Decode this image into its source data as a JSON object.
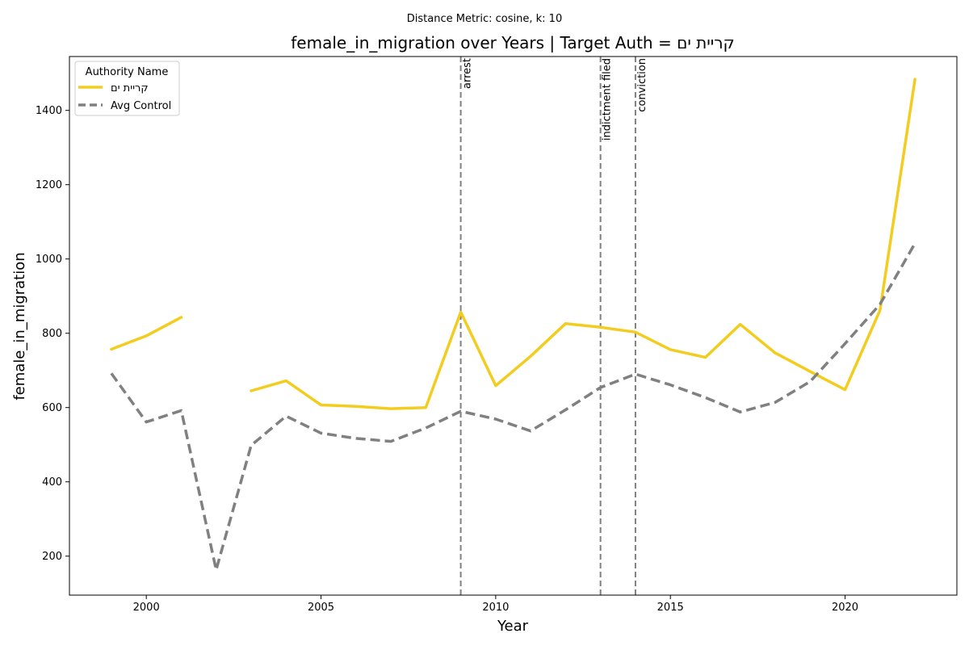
{
  "figure": {
    "suptitle": "Distance Metric: cosine, k: 10"
  },
  "chart_data": {
    "type": "line",
    "title": "female_in_migration over Years | Target Auth = קריית ים",
    "xlabel": "Year",
    "ylabel": "female_in_migration",
    "xlim": [
      1997.8,
      2023.2
    ],
    "ylim": [
      95,
      1545
    ],
    "xticks": [
      2000,
      2005,
      2010,
      2015,
      2020
    ],
    "yticks": [
      200,
      400,
      600,
      800,
      1000,
      1200,
      1400
    ],
    "grid": false,
    "legend": {
      "title": "Authority Name",
      "placement": "top-left"
    },
    "series": [
      {
        "name": "קריית ים",
        "color": "#F2CD1F",
        "style": "solid",
        "x": [
          1999,
          2000,
          2001,
          2002,
          2003,
          2004,
          2005,
          2006,
          2007,
          2008,
          2009,
          2010,
          2011,
          2012,
          2013,
          2014,
          2015,
          2016,
          2017,
          2018,
          2019,
          2020,
          2021,
          2022
        ],
        "y": [
          757,
          793,
          843,
          null,
          645,
          672,
          607,
          603,
          597,
          600,
          857,
          659,
          738,
          826,
          816,
          803,
          756,
          735,
          824,
          747,
          697,
          648,
          862,
          1484
        ]
      },
      {
        "name": "Avg Control",
        "color": "#808080",
        "style": "dashed",
        "x": [
          1999,
          2000,
          2001,
          2002,
          2003,
          2004,
          2005,
          2006,
          2007,
          2008,
          2009,
          2010,
          2011,
          2012,
          2013,
          2014,
          2015,
          2016,
          2017,
          2018,
          2019,
          2020,
          2021,
          2022
        ],
        "y": [
          692,
          561,
          592,
          163,
          498,
          577,
          531,
          517,
          509,
          545,
          590,
          569,
          537,
          594,
          654,
          690,
          661,
          627,
          588,
          614,
          670,
          772,
          878,
          1042
        ]
      }
    ],
    "events": [
      {
        "x": 2009,
        "label": "arrest"
      },
      {
        "x": 2013,
        "label": "indictment filed"
      },
      {
        "x": 2014,
        "label": "conviction"
      }
    ]
  }
}
